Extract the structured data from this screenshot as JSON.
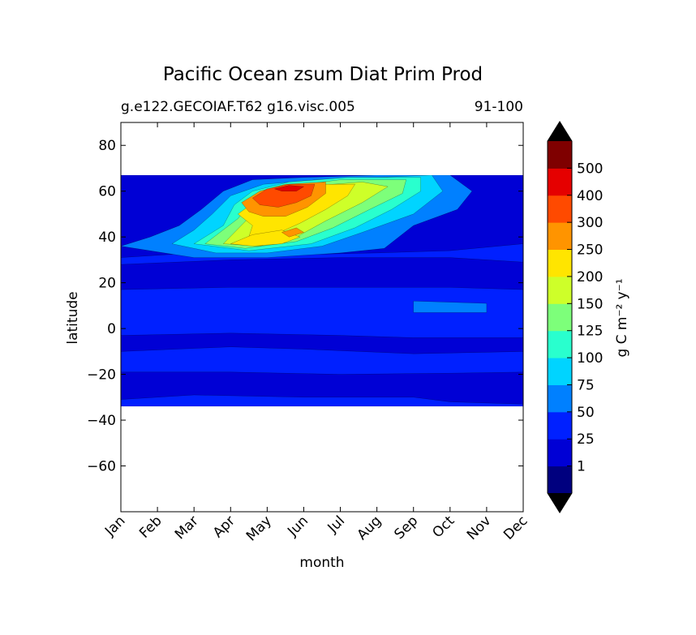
{
  "chart_data": {
    "type": "heatmap",
    "title": "Pacific Ocean zsum Diat Prim Prod",
    "subtitle_left": "g.e122.GECOIAF.T62 g16.visc.005",
    "subtitle_right": "91-100",
    "xlabel": "month",
    "ylabel": "latitude",
    "x_categories": [
      "Jan",
      "Feb",
      "Mar",
      "Apr",
      "May",
      "Jun",
      "Jul",
      "Aug",
      "Sep",
      "Oct",
      "Nov",
      "Dec"
    ],
    "xlim": [
      1,
      12
    ],
    "ylim": [
      -80,
      90
    ],
    "y_ticks": [
      80,
      60,
      40,
      20,
      0,
      -20,
      -40,
      -60
    ],
    "data_lat_range": [
      -34,
      67
    ],
    "colorbar": {
      "label": "g C m⁻² y⁻¹",
      "levels": [
        1,
        25,
        50,
        75,
        100,
        125,
        150,
        200,
        250,
        300,
        400,
        500
      ],
      "tick_labels": [
        "1",
        "25",
        "50",
        "75",
        "100",
        "125",
        "150",
        "200",
        "250",
        "300",
        "400",
        "500"
      ],
      "colors": [
        "#00007f",
        "#0000d5",
        "#0020ff",
        "#0080ff",
        "#00d4ff",
        "#29ffce",
        "#7dff7a",
        "#ceff29",
        "#ffe500",
        "#ff9400",
        "#ff4a00",
        "#e50000",
        "#7f0000"
      ],
      "under_color": "#000000",
      "over_color": "#000000"
    },
    "regions": [
      {
        "level": 2,
        "points": [
          [
            1,
            -34
          ],
          [
            12,
            -34
          ],
          [
            12,
            67
          ],
          [
            1,
            67
          ]
        ]
      },
      {
        "level": 1,
        "points": [
          [
            1,
            -31
          ],
          [
            3,
            -29
          ],
          [
            6,
            -30
          ],
          [
            9,
            -30
          ],
          [
            10,
            -32
          ],
          [
            12,
            -33
          ],
          [
            12,
            -19
          ],
          [
            10,
            -19.5
          ],
          [
            7,
            -20
          ],
          [
            4,
            -19
          ],
          [
            1,
            -19
          ]
        ]
      },
      {
        "level": 1,
        "points": [
          [
            1,
            -3
          ],
          [
            4,
            -2
          ],
          [
            7,
            -3
          ],
          [
            9,
            -4
          ],
          [
            12,
            -4
          ],
          [
            12,
            -10
          ],
          [
            9,
            -11
          ],
          [
            6,
            -9
          ],
          [
            4,
            -8
          ],
          [
            1,
            -10
          ]
        ]
      },
      {
        "level": 1,
        "points": [
          [
            1,
            17
          ],
          [
            4,
            18
          ],
          [
            7,
            18
          ],
          [
            10,
            18
          ],
          [
            12,
            17
          ],
          [
            12,
            29
          ],
          [
            10,
            31
          ],
          [
            7,
            31
          ],
          [
            4,
            30
          ],
          [
            1,
            28
          ]
        ]
      },
      {
        "level": 3,
        "points": [
          [
            9,
            7
          ],
          [
            11,
            7
          ],
          [
            11,
            11
          ],
          [
            9,
            12
          ]
        ]
      },
      {
        "level": 1,
        "points": [
          [
            1,
            31
          ],
          [
            3,
            33
          ],
          [
            5,
            32
          ],
          [
            8,
            33
          ],
          [
            10,
            34
          ],
          [
            12,
            37
          ],
          [
            12,
            67
          ],
          [
            1,
            67
          ]
        ]
      },
      {
        "level": 3,
        "points": [
          [
            1,
            36
          ],
          [
            1.8,
            40
          ],
          [
            2.6,
            45
          ],
          [
            3.2,
            52
          ],
          [
            3.8,
            60
          ],
          [
            4.6,
            65
          ],
          [
            6,
            66
          ],
          [
            8,
            67
          ],
          [
            10,
            67
          ],
          [
            10.6,
            60
          ],
          [
            10.2,
            52
          ],
          [
            9,
            45
          ],
          [
            8.2,
            35
          ],
          [
            7,
            33
          ],
          [
            5,
            31
          ],
          [
            3,
            31
          ]
        ]
      },
      {
        "level": 4,
        "points": [
          [
            2.4,
            37
          ],
          [
            3,
            43
          ],
          [
            3.5,
            50
          ],
          [
            4,
            58
          ],
          [
            4.9,
            63
          ],
          [
            6.4,
            65
          ],
          [
            8,
            66
          ],
          [
            9.5,
            67
          ],
          [
            9.8,
            60
          ],
          [
            9,
            50
          ],
          [
            7.6,
            42
          ],
          [
            6.5,
            36
          ],
          [
            5,
            33
          ],
          [
            3.6,
            33
          ]
        ]
      },
      {
        "level": 5,
        "points": [
          [
            3,
            37
          ],
          [
            3.8,
            45
          ],
          [
            4.1,
            54
          ],
          [
            4.6,
            60
          ],
          [
            5.6,
            64
          ],
          [
            7.2,
            66
          ],
          [
            9.2,
            66
          ],
          [
            9.2,
            60
          ],
          [
            8.4,
            52
          ],
          [
            7.4,
            44
          ],
          [
            6.2,
            37
          ],
          [
            4.5,
            34
          ]
        ]
      },
      {
        "level": 6,
        "points": [
          [
            3.3,
            37
          ],
          [
            4.2,
            48
          ],
          [
            4.6,
            56
          ],
          [
            5.5,
            62
          ],
          [
            7,
            65
          ],
          [
            8.8,
            65
          ],
          [
            8.7,
            59
          ],
          [
            7.8,
            52
          ],
          [
            6.8,
            44
          ],
          [
            5.8,
            38
          ],
          [
            4.4,
            35
          ]
        ]
      },
      {
        "level": 7,
        "points": [
          [
            3.8,
            37
          ],
          [
            4.6,
            50
          ],
          [
            5.1,
            57
          ],
          [
            6,
            62
          ],
          [
            7.6,
            64
          ],
          [
            8.3,
            62
          ],
          [
            7.6,
            55
          ],
          [
            6.6,
            47
          ],
          [
            5.8,
            40
          ],
          [
            4.8,
            36
          ]
        ]
      },
      {
        "level": 8,
        "points": [
          [
            4.2,
            50
          ],
          [
            4.8,
            57
          ],
          [
            5.5,
            61
          ],
          [
            6.4,
            63
          ],
          [
            7.4,
            63
          ],
          [
            7.2,
            58
          ],
          [
            6.6,
            52
          ],
          [
            5.9,
            46
          ],
          [
            5.2,
            41
          ],
          [
            4.5,
            40
          ],
          [
            4.6,
            45
          ]
        ]
      },
      {
        "level": 8,
        "points": [
          [
            4,
            37
          ],
          [
            4.6,
            41
          ],
          [
            5.4,
            43
          ],
          [
            5.9,
            40
          ],
          [
            5.4,
            37
          ],
          [
            4.6,
            36
          ]
        ]
      },
      {
        "level": 9,
        "points": [
          [
            4.3,
            55
          ],
          [
            4.8,
            60
          ],
          [
            5.5,
            63
          ],
          [
            6.6,
            64
          ],
          [
            6.6,
            59
          ],
          [
            6.1,
            53
          ],
          [
            5.5,
            49
          ],
          [
            4.9,
            49
          ],
          [
            4.5,
            51
          ]
        ]
      },
      {
        "level": 9,
        "points": [
          [
            5.4,
            42
          ],
          [
            5.8,
            44
          ],
          [
            6,
            42
          ],
          [
            5.6,
            40
          ]
        ]
      },
      {
        "level": 10,
        "points": [
          [
            4.6,
            57
          ],
          [
            5,
            61
          ],
          [
            5.6,
            63
          ],
          [
            6.3,
            63
          ],
          [
            6.2,
            58
          ],
          [
            5.8,
            55
          ],
          [
            5.3,
            53
          ],
          [
            4.8,
            54
          ]
        ]
      },
      {
        "level": 11,
        "points": [
          [
            5.2,
            61
          ],
          [
            5.6,
            62.5
          ],
          [
            6,
            62
          ],
          [
            5.8,
            60
          ],
          [
            5.4,
            60
          ]
        ]
      }
    ]
  }
}
